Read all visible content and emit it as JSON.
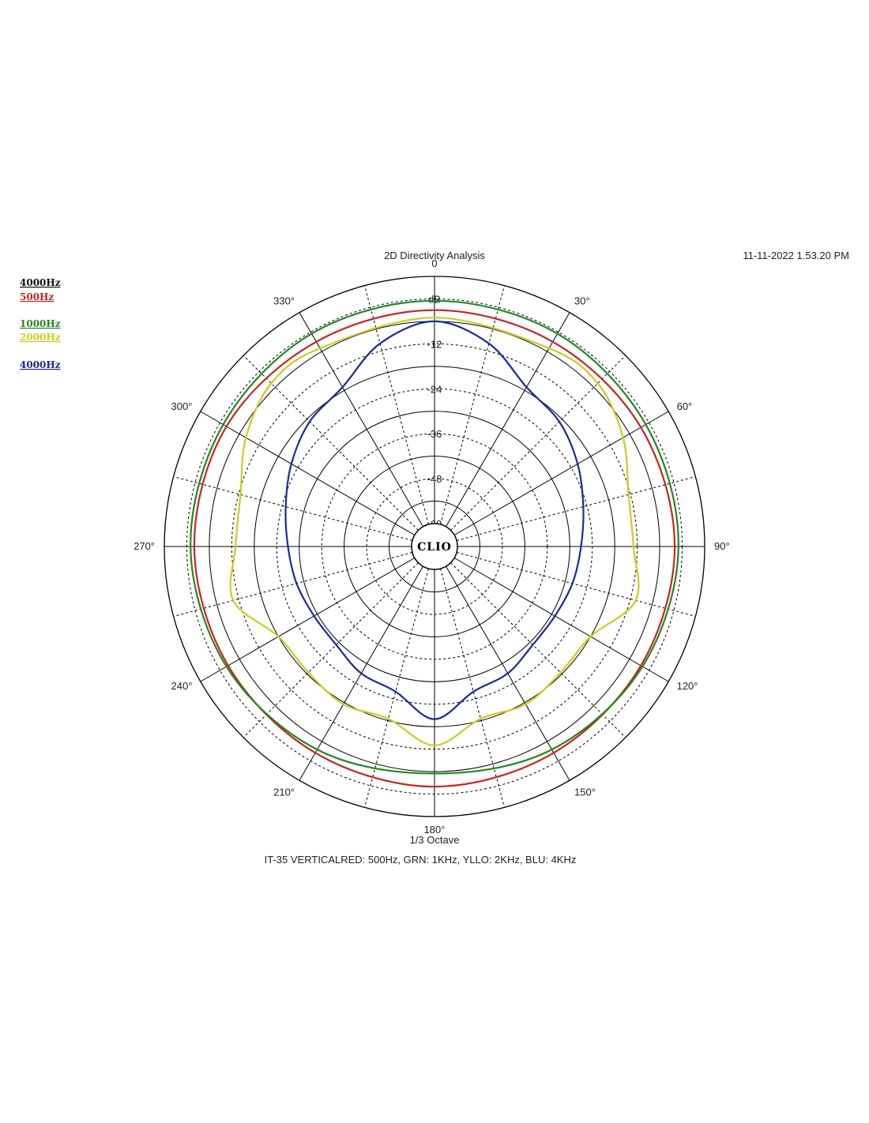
{
  "header": {
    "title": "2D Directivity Analysis",
    "timestamp": "11-11-2022 1.53.20 PM"
  },
  "footer": {
    "octave": "1/3 Octave",
    "caption": "IT-35 VERTICALRED: 500Hz, GRN: 1KHz, YLLO: 2KHz, BLU: 4KHz"
  },
  "center_logo": "CLIO",
  "legend": [
    {
      "label": "4000Hz",
      "color": "#111111"
    },
    {
      "label": "500Hz",
      "color": "#cc2222"
    },
    {
      "label": "1000Hz",
      "color": "#228822"
    },
    {
      "label": "2000Hz",
      "color": "#cccc22"
    },
    {
      "label": "4000Hz",
      "color": "#1a2aa0"
    }
  ],
  "chart_data": {
    "type": "line",
    "subtype": "polar",
    "title": "2D Directivity Analysis",
    "angle_unit": "deg",
    "angle_labels": [
      "0",
      "30°",
      "60°",
      "90°",
      "120°",
      "150°",
      "180°",
      "210°",
      "240°",
      "270°",
      "300°",
      "330°"
    ],
    "radial_labels": [
      "dB",
      "-12",
      "-24",
      "-36",
      "-48",
      "-60"
    ],
    "r_range_db": [
      -66,
      0
    ],
    "grid": true,
    "legend_position": "top-left",
    "series": [
      {
        "name": "500Hz",
        "color": "#cc2222",
        "angles": [
          0,
          30,
          60,
          90,
          120,
          150,
          180,
          210,
          240,
          270,
          300,
          330
        ],
        "values_db": [
          -9,
          -9,
          -8.5,
          -8,
          -8.5,
          -8.5,
          -8,
          -8.5,
          -8.5,
          -8,
          -8,
          -9
        ]
      },
      {
        "name": "1000Hz",
        "color": "#228822",
        "angles": [
          0,
          30,
          60,
          90,
          120,
          150,
          180,
          210,
          240,
          270,
          300,
          330
        ],
        "values_db": [
          -6.5,
          -6.5,
          -7,
          -7,
          -8,
          -9.5,
          -11.5,
          -9.5,
          -8,
          -7,
          -7,
          -6.5
        ]
      },
      {
        "name": "2000Hz",
        "color": "#cccc22",
        "angles": [
          0,
          30,
          45,
          60,
          75,
          90,
          105,
          120,
          135,
          150,
          165,
          180,
          195,
          210,
          225,
          240,
          255,
          270,
          285,
          300,
          315,
          330
        ],
        "values_db": [
          -11,
          -11,
          -10.5,
          -14,
          -18.5,
          -19,
          -16.5,
          -24,
          -24.5,
          -23.5,
          -24.5,
          -19,
          -24.5,
          -23.5,
          -24.5,
          -24,
          -16.5,
          -19,
          -18.5,
          -14,
          -10.5,
          -11
        ]
      },
      {
        "name": "4000Hz",
        "color": "#1a2aa0",
        "angles": [
          0,
          15,
          30,
          45,
          60,
          75,
          90,
          105,
          120,
          135,
          150,
          165,
          180,
          195,
          210,
          225,
          240,
          255,
          270,
          285,
          300,
          315,
          330,
          345
        ],
        "values_db": [
          -12,
          -16,
          -23,
          -25,
          -28,
          -31,
          -33,
          -34,
          -35,
          -35,
          -33,
          -32,
          -26,
          -32,
          -33,
          -35,
          -35,
          -34,
          -33,
          -31,
          -28,
          -25,
          -23,
          -16
        ]
      }
    ]
  }
}
